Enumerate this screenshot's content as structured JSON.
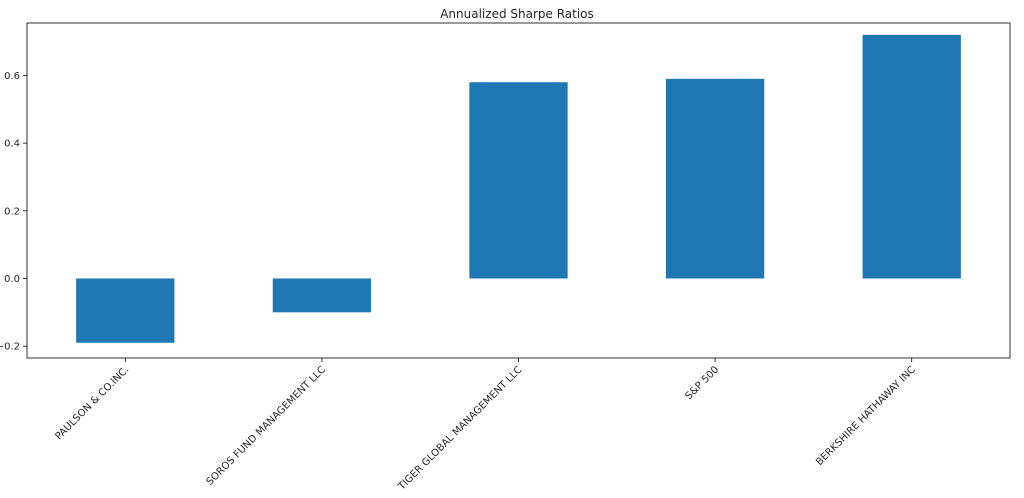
{
  "chart_data": {
    "type": "bar",
    "title": "Annualized Sharpe Ratios",
    "xlabel": "",
    "ylabel": "",
    "categories": [
      "PAULSON & CO.INC.",
      "SOROS FUND MANAGEMENT LLC",
      "TIGER GLOBAL MANAGEMENT LLC",
      "S&P 500",
      "BERKSHIRE HATHAWAY INC"
    ],
    "values": [
      -0.19,
      -0.1,
      0.58,
      0.59,
      0.72
    ],
    "ylim": [
      -0.235,
      0.755
    ],
    "yticks": [
      -0.2,
      0.0,
      0.2,
      0.4,
      0.6
    ],
    "ytick_labels": [
      "−0.2",
      "0.0",
      "0.2",
      "0.4",
      "0.6"
    ],
    "bar_color": "#1f77b4",
    "grid": false,
    "legend": "none"
  }
}
